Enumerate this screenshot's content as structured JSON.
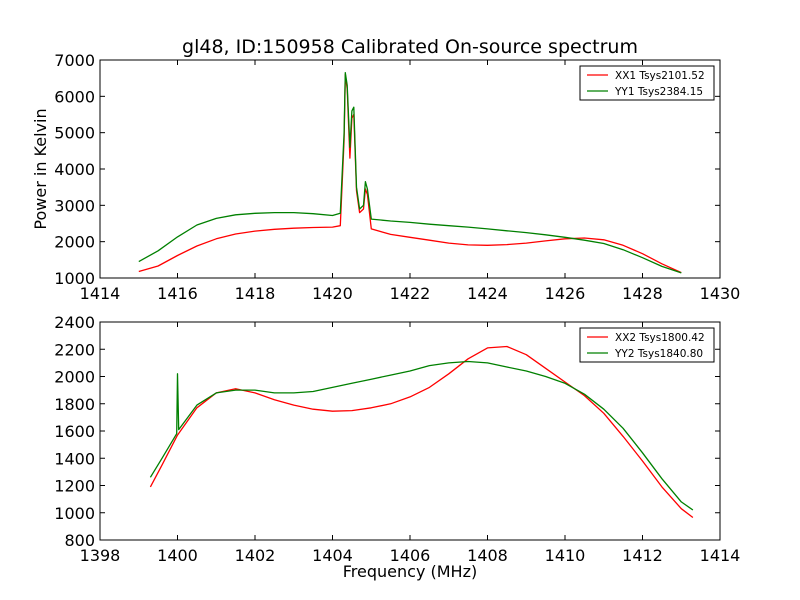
{
  "chart_data": {
    "title": "gl48, ID:150958 Calibrated On-source spectrum",
    "xlabel": "Frequency (MHz)",
    "ylabel": "Power in Kelvin",
    "colors": {
      "XX": "#ff0000",
      "YY": "#008000"
    },
    "panels": [
      {
        "type": "line",
        "xlim": [
          1414,
          1430
        ],
        "ylim": [
          1000,
          7000
        ],
        "xticks": [
          1414,
          1416,
          1418,
          1420,
          1422,
          1424,
          1426,
          1428,
          1430
        ],
        "yticks": [
          1000,
          2000,
          3000,
          4000,
          5000,
          6000,
          7000
        ],
        "legend_position": "top-right",
        "series": [
          {
            "name": "XX1 Tsys2101.52",
            "color": "#ff0000",
            "points": [
              [
                1415,
                1180
              ],
              [
                1415.5,
                1330
              ],
              [
                1416,
                1620
              ],
              [
                1416.5,
                1880
              ],
              [
                1417,
                2080
              ],
              [
                1417.5,
                2210
              ],
              [
                1418,
                2290
              ],
              [
                1418.5,
                2340
              ],
              [
                1419,
                2370
              ],
              [
                1419.5,
                2390
              ],
              [
                1420,
                2400
              ],
              [
                1420.2,
                2440
              ],
              [
                1420.3,
                4800
              ],
              [
                1420.33,
                6600
              ],
              [
                1420.38,
                6200
              ],
              [
                1420.45,
                4300
              ],
              [
                1420.5,
                5400
              ],
              [
                1420.55,
                5500
              ],
              [
                1420.62,
                3400
              ],
              [
                1420.7,
                2800
              ],
              [
                1420.8,
                2900
              ],
              [
                1420.85,
                3450
              ],
              [
                1420.9,
                3300
              ],
              [
                1421,
                2350
              ],
              [
                1421.5,
                2200
              ],
              [
                1422,
                2120
              ],
              [
                1422.5,
                2040
              ],
              [
                1423,
                1960
              ],
              [
                1423.5,
                1910
              ],
              [
                1424,
                1900
              ],
              [
                1424.5,
                1920
              ],
              [
                1425,
                1960
              ],
              [
                1425.5,
                2020
              ],
              [
                1426,
                2080
              ],
              [
                1426.5,
                2100
              ],
              [
                1427,
                2050
              ],
              [
                1427.5,
                1900
              ],
              [
                1428,
                1670
              ],
              [
                1428.5,
                1390
              ],
              [
                1429,
                1150
              ]
            ]
          },
          {
            "name": "YY1 Tsys2384.15",
            "color": "#008000",
            "points": [
              [
                1415,
                1450
              ],
              [
                1415.5,
                1750
              ],
              [
                1416,
                2130
              ],
              [
                1416.5,
                2460
              ],
              [
                1417,
                2640
              ],
              [
                1417.5,
                2740
              ],
              [
                1418,
                2780
              ],
              [
                1418.5,
                2800
              ],
              [
                1419,
                2800
              ],
              [
                1419.5,
                2770
              ],
              [
                1420,
                2720
              ],
              [
                1420.2,
                2780
              ],
              [
                1420.3,
                5000
              ],
              [
                1420.33,
                6650
              ],
              [
                1420.38,
                6300
              ],
              [
                1420.45,
                4600
              ],
              [
                1420.5,
                5600
              ],
              [
                1420.55,
                5700
              ],
              [
                1420.62,
                3500
              ],
              [
                1420.7,
                2900
              ],
              [
                1420.8,
                3000
              ],
              [
                1420.85,
                3650
              ],
              [
                1420.9,
                3450
              ],
              [
                1421,
                2620
              ],
              [
                1421.5,
                2570
              ],
              [
                1422,
                2530
              ],
              [
                1422.5,
                2480
              ],
              [
                1423,
                2440
              ],
              [
                1423.5,
                2400
              ],
              [
                1424,
                2350
              ],
              [
                1424.5,
                2300
              ],
              [
                1425,
                2250
              ],
              [
                1425.5,
                2190
              ],
              [
                1426,
                2120
              ],
              [
                1426.5,
                2040
              ],
              [
                1427,
                1950
              ],
              [
                1427.5,
                1780
              ],
              [
                1428,
                1560
              ],
              [
                1428.5,
                1320
              ],
              [
                1429,
                1140
              ]
            ]
          }
        ]
      },
      {
        "type": "line",
        "xlim": [
          1398,
          1414
        ],
        "ylim": [
          800,
          2400
        ],
        "xticks": [
          1398,
          1400,
          1402,
          1404,
          1406,
          1408,
          1410,
          1412,
          1414
        ],
        "yticks": [
          800,
          1000,
          1200,
          1400,
          1600,
          1800,
          2000,
          2200,
          2400
        ],
        "legend_position": "top-right",
        "series": [
          {
            "name": "XX2 Tsys1800.42",
            "color": "#ff0000",
            "points": [
              [
                1399.3,
                1190
              ],
              [
                1399.6,
                1350
              ],
              [
                1400,
                1570
              ],
              [
                1400.5,
                1770
              ],
              [
                1401,
                1880
              ],
              [
                1401.5,
                1910
              ],
              [
                1402,
                1880
              ],
              [
                1402.5,
                1830
              ],
              [
                1403,
                1790
              ],
              [
                1403.5,
                1760
              ],
              [
                1404,
                1745
              ],
              [
                1404.5,
                1750
              ],
              [
                1405,
                1770
              ],
              [
                1405.5,
                1800
              ],
              [
                1406,
                1850
              ],
              [
                1406.5,
                1920
              ],
              [
                1407,
                2020
              ],
              [
                1407.5,
                2130
              ],
              [
                1408,
                2210
              ],
              [
                1408.5,
                2220
              ],
              [
                1409,
                2160
              ],
              [
                1409.5,
                2060
              ],
              [
                1410,
                1960
              ],
              [
                1410.5,
                1860
              ],
              [
                1411,
                1730
              ],
              [
                1411.5,
                1560
              ],
              [
                1412,
                1380
              ],
              [
                1412.5,
                1190
              ],
              [
                1413,
                1030
              ],
              [
                1413.3,
                965
              ]
            ]
          },
          {
            "name": "YY2 Tsys1840.80",
            "color": "#008000",
            "points": [
              [
                1399.3,
                1260
              ],
              [
                1399.6,
                1400
              ],
              [
                1399.98,
                1580
              ],
              [
                1400,
                2020
              ],
              [
                1400.03,
                1610
              ],
              [
                1400.5,
                1790
              ],
              [
                1401,
                1880
              ],
              [
                1401.5,
                1900
              ],
              [
                1402,
                1900
              ],
              [
                1402.5,
                1880
              ],
              [
                1403,
                1880
              ],
              [
                1403.5,
                1890
              ],
              [
                1404,
                1920
              ],
              [
                1404.5,
                1950
              ],
              [
                1405,
                1980
              ],
              [
                1405.5,
                2010
              ],
              [
                1406,
                2040
              ],
              [
                1406.5,
                2080
              ],
              [
                1407,
                2100
              ],
              [
                1407.5,
                2110
              ],
              [
                1408,
                2100
              ],
              [
                1408.5,
                2070
              ],
              [
                1409,
                2040
              ],
              [
                1409.5,
                2000
              ],
              [
                1410,
                1950
              ],
              [
                1410.5,
                1870
              ],
              [
                1411,
                1760
              ],
              [
                1411.5,
                1620
              ],
              [
                1412,
                1440
              ],
              [
                1412.5,
                1250
              ],
              [
                1413,
                1080
              ],
              [
                1413.3,
                1020
              ]
            ]
          }
        ]
      }
    ]
  }
}
